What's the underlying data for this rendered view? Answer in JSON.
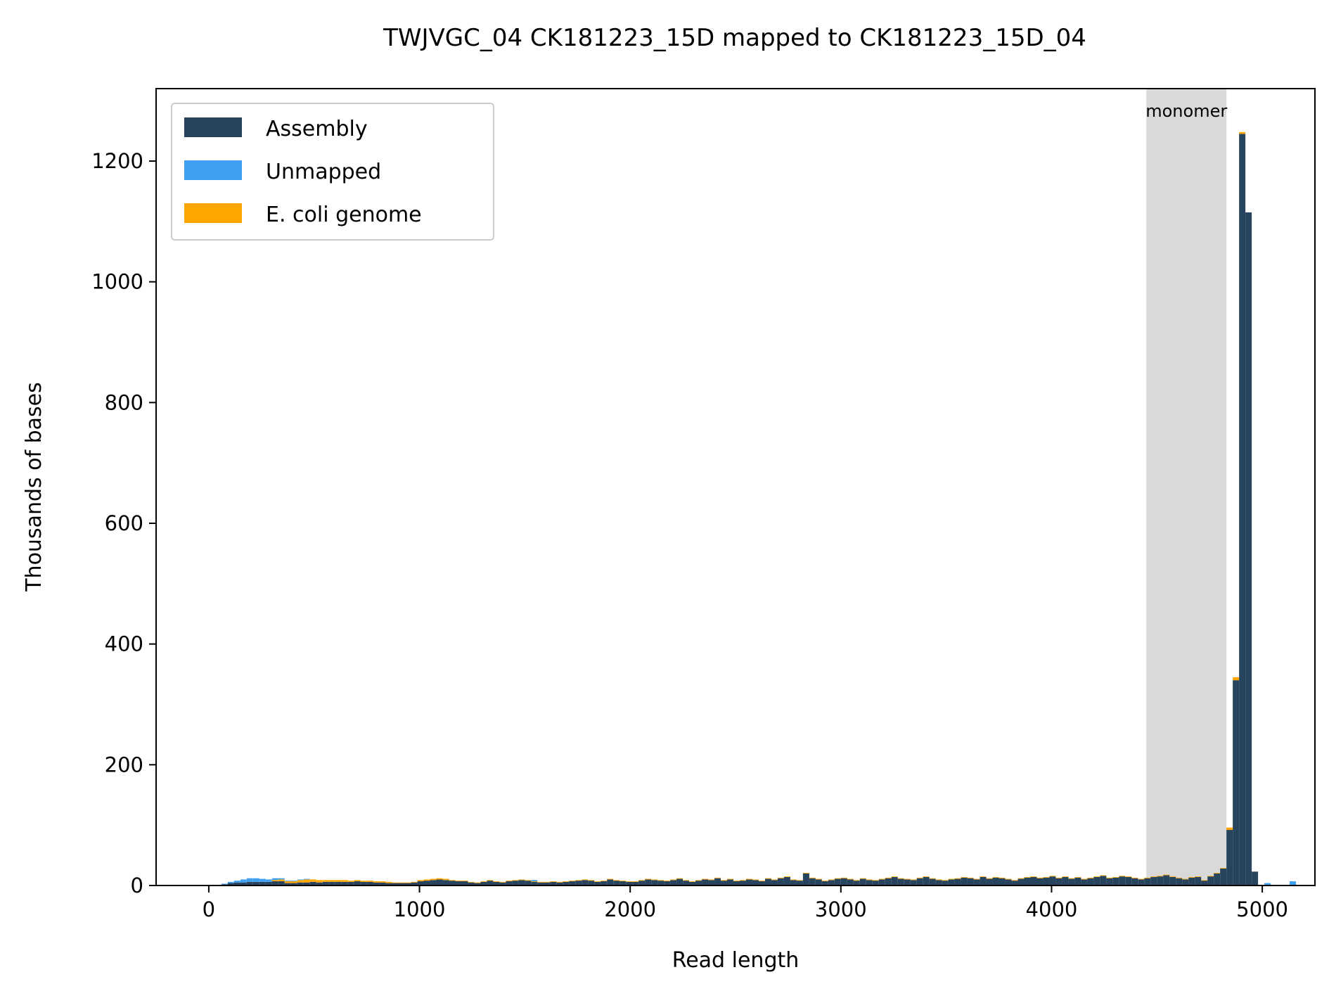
{
  "chart_data": {
    "type": "bar",
    "stacked": true,
    "title": "TWJVGC_04 CK181223_15D mapped to CK181223_15D_04",
    "xlabel": "Read length",
    "ylabel": "Thousands of bases",
    "xlim": [
      -250,
      5250
    ],
    "ylim": [
      0,
      1320
    ],
    "xticks": [
      0,
      1000,
      2000,
      3000,
      4000,
      5000
    ],
    "yticks": [
      0,
      200,
      400,
      600,
      800,
      1000,
      1200
    ],
    "xtick_labels": [
      "0",
      "1000",
      "2000",
      "3000",
      "4000",
      "5000"
    ],
    "ytick_labels": [
      "0",
      "200",
      "400",
      "600",
      "800",
      "1000",
      "1200"
    ],
    "grid": false,
    "legend_position": "top-left",
    "bin_width": 30,
    "bin_start": 0,
    "highlight_region": {
      "x0": 4450,
      "x1": 4830,
      "label": "monomer",
      "color": "#d9d9d9"
    },
    "series": [
      {
        "name": "Assembly",
        "color": "#26445e",
        "values": [
          0,
          1,
          2,
          4,
          5,
          5,
          6,
          6,
          6,
          6,
          7,
          7,
          4,
          4,
          5,
          5,
          6,
          5,
          6,
          6,
          6,
          6,
          6,
          7,
          6,
          6,
          5,
          5,
          4,
          4,
          4,
          4,
          5,
          7,
          8,
          9,
          10,
          9,
          8,
          7,
          7,
          5,
          4,
          6,
          8,
          6,
          5,
          7,
          8,
          9,
          8,
          6,
          5,
          5,
          6,
          5,
          6,
          7,
          8,
          9,
          8,
          6,
          7,
          10,
          8,
          7,
          6,
          6,
          8,
          10,
          9,
          8,
          7,
          9,
          11,
          8,
          6,
          8,
          10,
          9,
          12,
          8,
          10,
          7,
          8,
          10,
          9,
          7,
          11,
          9,
          12,
          14,
          9,
          8,
          20,
          12,
          10,
          7,
          9,
          11,
          12,
          10,
          8,
          11,
          9,
          8,
          10,
          12,
          14,
          11,
          10,
          9,
          12,
          14,
          11,
          9,
          8,
          10,
          11,
          13,
          12,
          10,
          14,
          11,
          13,
          12,
          10,
          8,
          11,
          13,
          14,
          12,
          13,
          15,
          12,
          14,
          11,
          13,
          10,
          12,
          14,
          16,
          12,
          13,
          15,
          14,
          12,
          10,
          12,
          14,
          15,
          17,
          14,
          12,
          10,
          13,
          14,
          8,
          15,
          20,
          28,
          92,
          340,
          1245,
          1115,
          23,
          0,
          0,
          0,
          0,
          0,
          0,
          0,
          0,
          0,
          0
        ]
      },
      {
        "name": "Unmapped",
        "color": "#3f9ff2",
        "values": [
          0,
          0,
          1,
          2,
          3,
          5,
          6,
          6,
          5,
          4,
          3,
          2,
          1,
          1,
          1,
          1,
          0,
          0,
          0,
          0,
          0,
          0,
          0,
          0,
          0,
          0,
          0,
          0,
          0,
          0,
          0,
          0,
          0,
          0,
          0,
          0,
          0,
          0,
          0,
          0,
          0,
          0,
          0,
          0,
          0,
          0,
          0,
          0,
          0,
          0,
          0,
          2,
          0,
          0,
          0,
          0,
          0,
          0,
          0,
          0,
          0,
          0,
          0,
          0,
          0,
          0,
          0,
          0,
          0,
          0,
          0,
          0,
          0,
          0,
          0,
          0,
          0,
          0,
          0,
          0,
          0,
          0,
          0,
          0,
          0,
          0,
          0,
          0,
          0,
          0,
          0,
          0,
          0,
          0,
          0,
          0,
          0,
          0,
          0,
          0,
          0,
          0,
          0,
          0,
          0,
          0,
          0,
          0,
          0,
          0,
          0,
          0,
          0,
          0,
          0,
          0,
          0,
          0,
          0,
          0,
          0,
          0,
          0,
          0,
          0,
          0,
          0,
          0,
          0,
          0,
          0,
          0,
          0,
          0,
          0,
          0,
          0,
          0,
          0,
          0,
          0,
          0,
          0,
          0,
          0,
          0,
          0,
          0,
          0,
          0,
          0,
          0,
          0,
          0,
          0,
          0,
          0,
          0,
          0,
          0,
          0,
          0,
          0,
          0,
          0,
          0,
          0,
          4,
          0,
          0,
          0,
          7,
          0,
          0,
          0,
          0
        ]
      },
      {
        "name": "E. coli genome",
        "color": "#ffa500",
        "values": [
          0,
          0,
          0,
          0,
          0,
          0,
          0,
          0,
          0,
          0,
          2,
          3,
          3,
          3,
          4,
          5,
          4,
          4,
          3,
          3,
          3,
          3,
          2,
          2,
          2,
          2,
          2,
          2,
          2,
          1,
          1,
          1,
          1,
          2,
          2,
          2,
          2,
          2,
          1,
          1,
          1,
          1,
          1,
          1,
          1,
          1,
          1,
          1,
          1,
          1,
          1,
          1,
          1,
          1,
          1,
          1,
          1,
          1,
          1,
          1,
          1,
          1,
          1,
          1,
          1,
          1,
          1,
          1,
          1,
          1,
          1,
          1,
          1,
          1,
          1,
          1,
          1,
          1,
          1,
          1,
          1,
          1,
          1,
          1,
          1,
          1,
          1,
          1,
          1,
          1,
          1,
          1,
          1,
          1,
          1,
          1,
          1,
          1,
          1,
          1,
          1,
          1,
          1,
          1,
          1,
          1,
          1,
          1,
          1,
          1,
          1,
          1,
          1,
          1,
          1,
          1,
          1,
          1,
          1,
          1,
          1,
          1,
          1,
          1,
          1,
          1,
          1,
          1,
          1,
          1,
          1,
          1,
          1,
          1,
          1,
          1,
          1,
          1,
          1,
          1,
          1,
          1,
          1,
          1,
          1,
          1,
          1,
          1,
          1,
          1,
          1,
          1,
          1,
          1,
          1,
          1,
          1,
          1,
          1,
          1,
          1,
          4,
          5,
          3,
          0,
          0,
          0,
          0,
          0,
          0,
          0,
          0,
          0,
          0,
          0,
          0
        ]
      }
    ]
  }
}
